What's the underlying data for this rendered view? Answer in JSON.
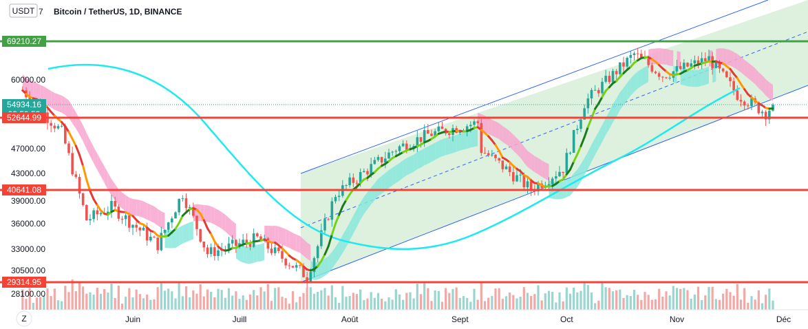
{
  "header": {
    "title": "Bitcoin / TetherUS, 1D, BINANCE",
    "currency": "USDT",
    "zoom_key": "Z",
    "top_clip_label": "7"
  },
  "colors": {
    "up": "#26a69a",
    "down": "#ef5350",
    "hline_green": "#43a047",
    "hline_red": "#f44336",
    "channel": "#2962ff",
    "channel_fill": "#d8efd8",
    "cloud_pink": "#f8a5cf",
    "cloud_teal": "#88e8dc",
    "sine": "#1de9f0",
    "current_price": "#26a69a"
  },
  "chart_data": {
    "type": "candlestick",
    "symbol": "Bitcoin / TetherUS",
    "interval": "1D",
    "exchange": "BINANCE",
    "y_axis_ticks": [
      60000.0,
      47000.0,
      43000.0,
      39000.0,
      36000.0,
      33000.0,
      30500.0,
      28100.0
    ],
    "x_axis_ticks": [
      "Juin",
      "Juill",
      "Août",
      "Sept",
      "Oct",
      "Nov",
      "Déc"
    ],
    "price_tags": [
      {
        "label": "69210.27",
        "kind": "level_green"
      },
      {
        "label": "54934.16",
        "kind": "current"
      },
      {
        "label": "03:59:53",
        "kind": "countdown"
      },
      {
        "label": "52644.99",
        "kind": "level_red"
      },
      {
        "label": "40641.08",
        "kind": "level_red"
      },
      {
        "label": "29314.95",
        "kind": "level_red"
      }
    ],
    "horizontal_levels": [
      69210.27,
      52644.99,
      40641.08,
      29314.95
    ],
    "current_price": 54934.16,
    "series_close_approx": [
      {
        "date": "2021-05-01",
        "close": 57800
      },
      {
        "date": "2021-05-12",
        "close": 50000
      },
      {
        "date": "2021-05-19",
        "close": 36500
      },
      {
        "date": "2021-05-26",
        "close": 38200
      },
      {
        "date": "2021-06-08",
        "close": 33500
      },
      {
        "date": "2021-06-15",
        "close": 40100
      },
      {
        "date": "2021-06-22",
        "close": 32500
      },
      {
        "date": "2021-07-06",
        "close": 34200
      },
      {
        "date": "2021-07-20",
        "close": 29900
      },
      {
        "date": "2021-07-28",
        "close": 40000
      },
      {
        "date": "2021-08-14",
        "close": 47000
      },
      {
        "date": "2021-08-23",
        "close": 49500
      },
      {
        "date": "2021-09-06",
        "close": 51700
      },
      {
        "date": "2021-09-07",
        "close": 46800
      },
      {
        "date": "2021-09-21",
        "close": 40700
      },
      {
        "date": "2021-09-30",
        "close": 43800
      },
      {
        "date": "2021-10-06",
        "close": 55300
      },
      {
        "date": "2021-10-20",
        "close": 66000
      },
      {
        "date": "2021-10-28",
        "close": 61000
      },
      {
        "date": "2021-11-10",
        "close": 64900
      },
      {
        "date": "2021-11-18",
        "close": 56900
      },
      {
        "date": "2021-11-26",
        "close": 53500
      },
      {
        "date": "2021-11-28",
        "close": 54934.16
      }
    ]
  }
}
